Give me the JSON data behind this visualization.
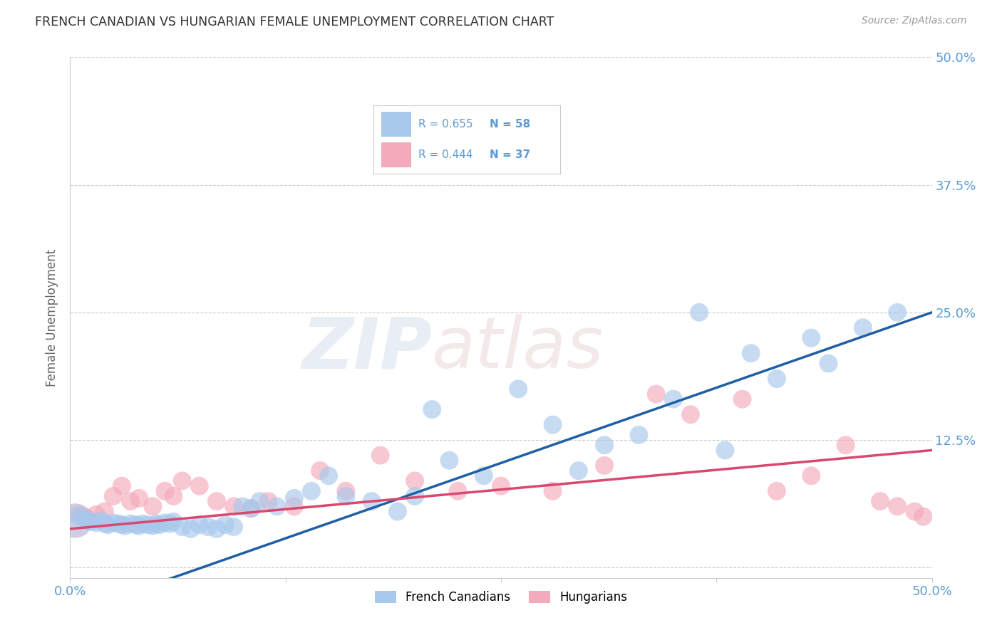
{
  "title": "FRENCH CANADIAN VS HUNGARIAN FEMALE UNEMPLOYMENT CORRELATION CHART",
  "source": "Source: ZipAtlas.com",
  "ylabel": "Female Unemployment",
  "xlim": [
    0,
    0.5
  ],
  "ylim": [
    -0.01,
    0.5
  ],
  "ytick_labels_right": [
    "",
    "12.5%",
    "25.0%",
    "37.5%",
    "50.0%"
  ],
  "yticks": [
    0.0,
    0.125,
    0.25,
    0.375,
    0.5
  ],
  "blue_color": "#A8C8EC",
  "pink_color": "#F4AABB",
  "blue_line_color": "#1F5FA6",
  "pink_line_color": "#D94870",
  "blue_R": "0.655",
  "blue_N": "58",
  "pink_R": "0.444",
  "pink_N": "37",
  "legend_label_blue": "French Canadians",
  "legend_label_pink": "Hungarians",
  "watermark_zip": "ZIP",
  "watermark_atlas": "atlas",
  "title_color": "#333333",
  "axis_label_color": "#5B9BD5",
  "grid_color": "#CCCCCC",
  "background_color": "#FFFFFF",
  "blue_line_x": [
    0.0,
    0.5
  ],
  "blue_line_y": [
    -0.045,
    0.25
  ],
  "pink_line_x": [
    0.0,
    0.5
  ],
  "pink_line_y": [
    0.038,
    0.115
  ],
  "blue_scatter_x": [
    0.005,
    0.008,
    0.01,
    0.012,
    0.015,
    0.018,
    0.02,
    0.022,
    0.025,
    0.028,
    0.03,
    0.032,
    0.035,
    0.038,
    0.04,
    0.042,
    0.045,
    0.048,
    0.05,
    0.052,
    0.055,
    0.058,
    0.06,
    0.065,
    0.07,
    0.075,
    0.08,
    0.085,
    0.09,
    0.095,
    0.1,
    0.105,
    0.11,
    0.12,
    0.13,
    0.14,
    0.15,
    0.16,
    0.175,
    0.19,
    0.2,
    0.21,
    0.22,
    0.24,
    0.26,
    0.28,
    0.295,
    0.31,
    0.33,
    0.35,
    0.365,
    0.38,
    0.395,
    0.41,
    0.43,
    0.44,
    0.46,
    0.48
  ],
  "blue_scatter_y": [
    0.05,
    0.048,
    0.046,
    0.045,
    0.044,
    0.046,
    0.043,
    0.042,
    0.044,
    0.043,
    0.042,
    0.041,
    0.043,
    0.042,
    0.041,
    0.043,
    0.042,
    0.041,
    0.043,
    0.042,
    0.044,
    0.043,
    0.045,
    0.04,
    0.038,
    0.042,
    0.04,
    0.038,
    0.042,
    0.04,
    0.06,
    0.058,
    0.065,
    0.06,
    0.068,
    0.075,
    0.09,
    0.07,
    0.065,
    0.055,
    0.07,
    0.155,
    0.105,
    0.09,
    0.175,
    0.14,
    0.095,
    0.12,
    0.13,
    0.165,
    0.25,
    0.115,
    0.21,
    0.185,
    0.225,
    0.2,
    0.235,
    0.25
  ],
  "pink_scatter_x": [
    0.005,
    0.008,
    0.01,
    0.015,
    0.02,
    0.025,
    0.03,
    0.035,
    0.04,
    0.048,
    0.055,
    0.06,
    0.065,
    0.075,
    0.085,
    0.095,
    0.105,
    0.115,
    0.13,
    0.145,
    0.16,
    0.18,
    0.2,
    0.225,
    0.25,
    0.28,
    0.31,
    0.34,
    0.36,
    0.39,
    0.41,
    0.43,
    0.45,
    0.47,
    0.48,
    0.49,
    0.495
  ],
  "pink_scatter_y": [
    0.052,
    0.05,
    0.048,
    0.052,
    0.055,
    0.07,
    0.08,
    0.065,
    0.068,
    0.06,
    0.075,
    0.07,
    0.085,
    0.08,
    0.065,
    0.06,
    0.058,
    0.065,
    0.06,
    0.095,
    0.075,
    0.11,
    0.085,
    0.075,
    0.08,
    0.075,
    0.1,
    0.17,
    0.15,
    0.165,
    0.075,
    0.09,
    0.12,
    0.065,
    0.06,
    0.055,
    0.05
  ]
}
